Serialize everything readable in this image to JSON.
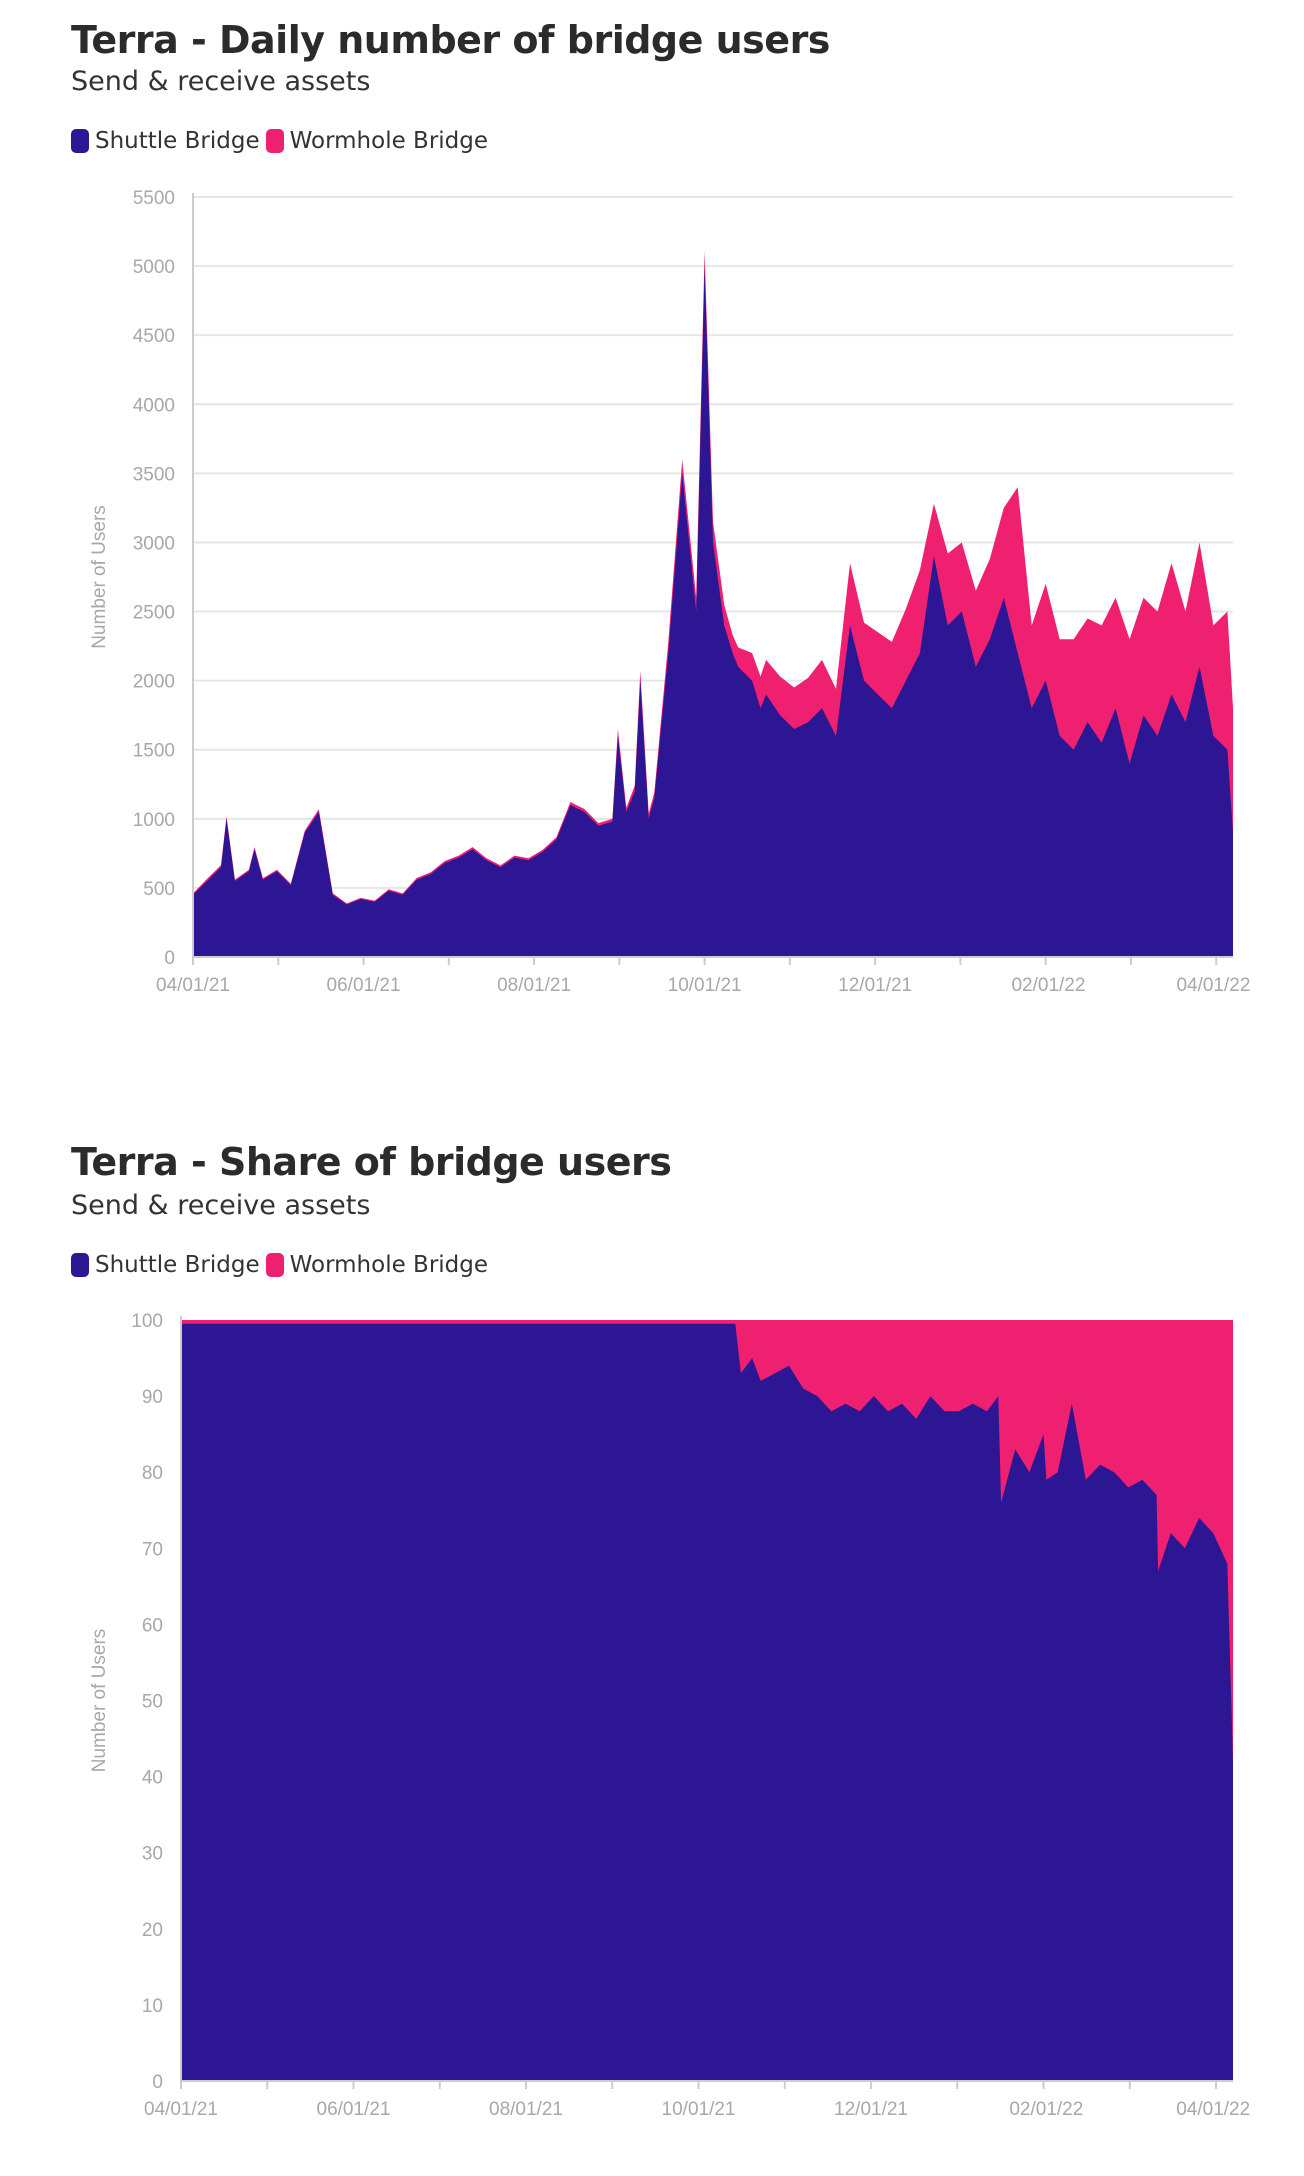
{
  "colors": {
    "shuttle": "#2c1693",
    "wormhole": "#f02070",
    "grid": "#e6e6e6",
    "axis_text": "#a8a8a8"
  },
  "chart_data": [
    {
      "type": "area",
      "stacked": true,
      "title": "Terra - Daily number of bridge users",
      "subtitle": "Send & receive assets",
      "ylabel": "Number of Users",
      "xlabel": "",
      "ylim": [
        0,
        5500
      ],
      "yticks": [
        "0",
        "500",
        "1000",
        "1500",
        "2000",
        "2500",
        "3000",
        "3500",
        "4000",
        "4500",
        "5000",
        "5500"
      ],
      "xticks": [
        "04/01/21",
        "06/01/21",
        "08/01/21",
        "10/01/21",
        "12/01/21",
        "02/01/22",
        "04/01/22"
      ],
      "legend": [
        "Shuttle Bridge",
        "Wormhole Bridge"
      ],
      "grid": true,
      "series": [
        {
          "name": "Shuttle Bridge",
          "color": "#2c1693",
          "x": [
            0,
            5,
            10,
            12,
            15,
            20,
            22,
            25,
            30,
            35,
            40,
            45,
            50,
            55,
            60,
            65,
            70,
            75,
            80,
            85,
            90,
            95,
            100,
            105,
            110,
            115,
            120,
            125,
            130,
            135,
            140,
            145,
            150,
            152,
            155,
            158,
            160,
            163,
            165,
            170,
            175,
            180,
            183,
            186,
            190,
            193,
            195,
            200,
            203,
            205,
            210,
            215,
            220,
            225,
            230,
            235,
            240,
            245,
            250,
            255,
            260,
            265,
            270,
            275,
            280,
            285,
            290,
            295,
            300,
            305,
            310,
            315,
            320,
            325,
            330,
            335,
            340,
            345,
            350,
            355,
            360,
            365,
            370,
            372
          ],
          "values": [
            450,
            550,
            650,
            1000,
            550,
            620,
            780,
            560,
            620,
            520,
            900,
            1050,
            450,
            380,
            420,
            400,
            480,
            450,
            560,
            600,
            680,
            720,
            780,
            700,
            650,
            720,
            700,
            760,
            850,
            1100,
            1050,
            950,
            980,
            1600,
            1050,
            1200,
            2000,
            1000,
            1150,
            2200,
            3500,
            2500,
            5000,
            3000,
            2400,
            2200,
            2100,
            2000,
            1800,
            1900,
            1750,
            1650,
            1700,
            1800,
            1600,
            2400,
            2000,
            1900,
            1800,
            2000,
            2200,
            2900,
            2400,
            2500,
            2100,
            2300,
            2600,
            2200,
            1800,
            2000,
            1600,
            1500,
            1700,
            1550,
            1800,
            1400,
            1750,
            1600,
            1900,
            1700,
            2100,
            1600,
            1500,
            900
          ]
        },
        {
          "name": "Wormhole Bridge",
          "color": "#f02070",
          "x": [
            0,
            5,
            10,
            12,
            15,
            20,
            22,
            25,
            30,
            35,
            40,
            45,
            50,
            55,
            60,
            65,
            70,
            75,
            80,
            85,
            90,
            95,
            100,
            105,
            110,
            115,
            120,
            125,
            130,
            135,
            140,
            145,
            150,
            152,
            155,
            158,
            160,
            163,
            165,
            170,
            175,
            180,
            183,
            186,
            190,
            193,
            195,
            200,
            203,
            205,
            210,
            215,
            220,
            225,
            230,
            235,
            240,
            245,
            250,
            255,
            260,
            265,
            270,
            275,
            280,
            285,
            290,
            295,
            300,
            305,
            310,
            315,
            320,
            325,
            330,
            335,
            340,
            345,
            350,
            355,
            360,
            365,
            370,
            372
          ],
          "values": [
            10,
            15,
            15,
            20,
            10,
            12,
            15,
            10,
            12,
            10,
            15,
            20,
            10,
            8,
            8,
            8,
            10,
            10,
            12,
            12,
            14,
            14,
            15,
            14,
            13,
            14,
            14,
            15,
            17,
            22,
            21,
            19,
            20,
            50,
            30,
            40,
            70,
            40,
            40,
            80,
            100,
            100,
            110,
            150,
            150,
            130,
            140,
            200,
            230,
            250,
            280,
            300,
            320,
            350,
            340,
            450,
            420,
            450,
            480,
            520,
            600,
            380,
            520,
            500,
            550,
            580,
            650,
            1200,
            600,
            700,
            700,
            800,
            750,
            850,
            800,
            900,
            850,
            900,
            950,
            800,
            900,
            800,
            1000,
            900
          ]
        }
      ]
    },
    {
      "type": "area",
      "stacked": true,
      "normalized": true,
      "title": "Terra - Share of bridge users",
      "subtitle": "Send & receive assets",
      "ylabel": "Number of Users",
      "xlabel": "",
      "ylim": [
        0,
        100
      ],
      "yticks": [
        "0",
        "10",
        "20",
        "30",
        "40",
        "50",
        "60",
        "70",
        "80",
        "90",
        "100"
      ],
      "xticks": [
        "04/01/21",
        "06/01/21",
        "08/01/21",
        "10/01/21",
        "12/01/21",
        "02/01/22",
        "04/01/22"
      ],
      "legend": [
        "Shuttle Bridge",
        "Wormhole Bridge"
      ],
      "grid": false,
      "series": [
        {
          "name": "Shuttle Bridge",
          "color": "#2c1693",
          "x": [
            0,
            100,
            150,
            196,
            198,
            202,
            205,
            210,
            215,
            220,
            225,
            230,
            235,
            240,
            245,
            250,
            255,
            260,
            265,
            270,
            275,
            280,
            285,
            289,
            290,
            295,
            300,
            305,
            306,
            310,
            315,
            320,
            325,
            330,
            335,
            340,
            345,
            345.5,
            350,
            355,
            360,
            365,
            370,
            372
          ],
          "values": [
            99.5,
            99.5,
            99.5,
            99.5,
            93,
            95,
            92,
            93,
            94,
            91,
            90,
            88,
            89,
            88,
            90,
            88,
            89,
            87,
            90,
            88,
            88,
            89,
            88,
            90,
            76,
            83,
            80,
            85,
            79,
            80,
            89,
            79,
            81,
            80,
            78,
            79,
            77,
            67,
            72,
            70,
            74,
            72,
            68,
            42
          ]
        },
        {
          "name": "Wormhole Bridge",
          "color": "#f02070",
          "x": [
            0,
            100,
            150,
            196,
            198,
            202,
            205,
            210,
            215,
            220,
            225,
            230,
            235,
            240,
            245,
            250,
            255,
            260,
            265,
            270,
            275,
            280,
            285,
            289,
            290,
            295,
            300,
            305,
            306,
            310,
            315,
            320,
            325,
            330,
            335,
            340,
            345,
            345.5,
            350,
            355,
            360,
            365,
            370,
            372
          ],
          "values": [
            0.5,
            0.5,
            0.5,
            0.5,
            7,
            5,
            8,
            7,
            6,
            9,
            10,
            12,
            11,
            12,
            10,
            12,
            11,
            13,
            10,
            12,
            12,
            11,
            12,
            10,
            24,
            17,
            20,
            15,
            21,
            20,
            11,
            21,
            19,
            20,
            22,
            21,
            23,
            33,
            28,
            30,
            26,
            28,
            32,
            58
          ]
        }
      ]
    }
  ]
}
